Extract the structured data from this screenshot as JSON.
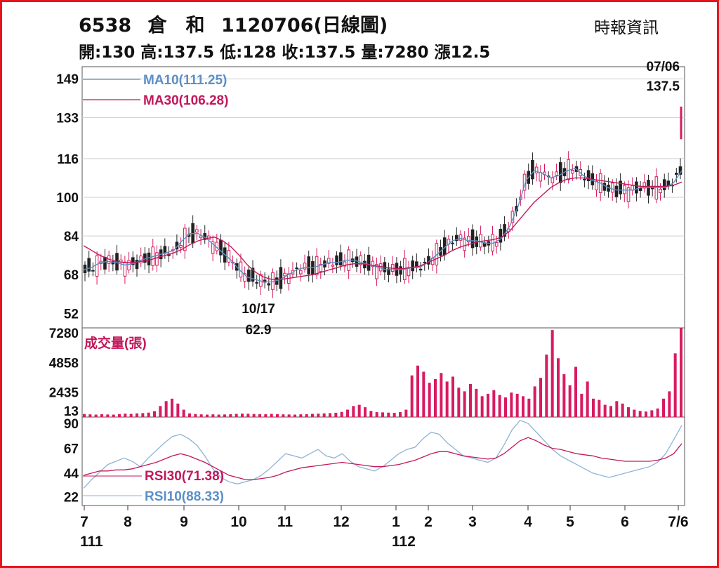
{
  "header": {
    "code": "6538",
    "name": "倉　和",
    "date_title": "1120706(日線圖)",
    "source": "時報資訊",
    "ohlc": [
      {
        "label": "開:",
        "value": "130"
      },
      {
        "label": "高:",
        "value": "137.5"
      },
      {
        "label": "低:",
        "value": "128"
      },
      {
        "label": "收:",
        "value": "137.5"
      },
      {
        "label": "量:",
        "value": "7280"
      },
      {
        "label": "漲",
        "value": "12.5"
      }
    ]
  },
  "colors": {
    "up": "#d81b60",
    "down": "#222222",
    "ma10": "#5b8fc7",
    "ma30": "#c2185b",
    "frame": "#e8141d"
  },
  "chart_data": [
    {
      "type": "line",
      "panel": "price",
      "y_ticks": [
        "149",
        "133",
        "116",
        "100",
        "84",
        "68",
        "52"
      ],
      "y_tick_values": [
        149,
        133,
        116,
        100,
        84,
        68,
        52
      ],
      "ylim": [
        46,
        154
      ],
      "series": [
        {
          "name": "MA10(111.25)",
          "values": [
            70,
            71,
            73,
            73.5,
            73,
            72,
            72.5,
            74,
            75,
            76,
            77,
            78,
            82,
            85,
            85,
            83,
            80,
            77,
            74,
            70,
            67,
            66,
            65,
            65,
            66,
            68,
            70,
            71,
            71,
            72,
            73,
            73,
            74,
            74,
            73,
            72,
            71,
            70,
            70,
            70,
            71,
            71,
            73,
            76,
            79,
            82,
            83,
            82,
            82,
            81,
            81,
            83,
            88,
            96,
            107,
            111,
            110,
            108,
            109,
            111,
            112,
            109,
            107,
            106,
            104,
            103,
            103,
            103,
            104,
            104,
            104,
            104,
            106,
            111
          ]
        },
        {
          "name": "MA30(106.28)",
          "values": [
            80,
            78,
            76,
            74.5,
            73.5,
            73,
            73,
            73.5,
            74,
            75,
            76,
            77,
            78.5,
            80.5,
            82,
            83,
            83.5,
            82,
            79.5,
            76,
            72,
            69,
            67,
            66,
            66,
            66.5,
            67,
            67.5,
            68,
            69,
            70,
            71,
            72,
            72.5,
            72.5,
            72,
            71.5,
            71,
            70.5,
            70.5,
            71,
            71.5,
            73,
            74.5,
            76,
            78,
            79.5,
            80.5,
            81.5,
            82,
            82.5,
            83.5,
            86,
            90,
            94,
            98,
            101,
            104,
            106,
            107.5,
            108,
            108,
            107.5,
            107,
            106.5,
            106,
            105.5,
            105,
            104.5,
            104.5,
            104.5,
            104.5,
            105,
            106.3
          ]
        }
      ],
      "annotations": [
        {
          "text": "07/06",
          "value": "137.5"
        },
        {
          "text": "10/17",
          "value": "62.9"
        }
      ]
    },
    {
      "type": "bar",
      "panel": "volume",
      "title": "成交量(張)",
      "y_ticks": [
        "7280",
        "4858",
        "2435",
        "13"
      ],
      "y_tick_values": [
        7280,
        4858,
        2435,
        13
      ],
      "ylim": [
        0,
        7280
      ],
      "values": [
        250,
        220,
        200,
        230,
        210,
        200,
        240,
        280,
        260,
        300,
        320,
        360,
        480,
        900,
        1300,
        1500,
        1100,
        600,
        300,
        250,
        220,
        200,
        220,
        200,
        210,
        230,
        260,
        280,
        270,
        250,
        240,
        230,
        260,
        230,
        220,
        210,
        200,
        220,
        240,
        260,
        280,
        300,
        320,
        350,
        420,
        600,
        900,
        1000,
        800,
        500,
        400,
        380,
        360,
        340,
        400,
        600,
        3400,
        4200,
        3700,
        2800,
        3100,
        3600,
        2900,
        3300,
        2400,
        2100,
        2700,
        2300,
        1700,
        1900,
        2200,
        1800,
        1600,
        2000,
        1900,
        1700,
        1500,
        2500,
        3200,
        5100,
        7100,
        4800,
        3500,
        2600,
        4100,
        1900,
        2900,
        1500,
        1400,
        1000,
        900,
        1300,
        1100,
        800,
        600,
        500,
        450,
        550,
        700,
        1500,
        2100,
        5200,
        7280
      ]
    },
    {
      "type": "line",
      "panel": "rsi",
      "y_ticks": [
        "90",
        "67",
        "44",
        "22"
      ],
      "y_tick_values": [
        90,
        67,
        44,
        22
      ],
      "ylim": [
        14,
        96
      ],
      "series": [
        {
          "name": "RSI30(71.38)",
          "values": [
            42,
            44,
            46,
            46,
            47,
            47,
            48,
            50,
            52,
            54,
            57,
            60,
            62,
            60,
            57,
            54,
            50,
            46,
            42,
            40,
            38,
            38,
            39,
            40,
            42,
            45,
            47,
            49,
            50,
            51,
            52,
            53,
            54,
            53,
            52,
            51,
            50,
            50,
            51,
            52,
            54,
            56,
            59,
            62,
            64,
            64,
            62,
            60,
            59,
            58,
            57,
            58,
            62,
            68,
            74,
            77,
            74,
            70,
            67,
            66,
            64,
            62,
            61,
            60,
            58,
            57,
            56,
            55,
            55,
            55,
            55,
            56,
            58,
            62,
            71.38
          ]
        },
        {
          "name": "RSI10(88.33)",
          "values": [
            30,
            38,
            45,
            52,
            55,
            58,
            55,
            50,
            58,
            65,
            72,
            78,
            80,
            76,
            70,
            60,
            48,
            40,
            36,
            34,
            36,
            38,
            42,
            48,
            55,
            62,
            60,
            58,
            62,
            66,
            60,
            58,
            62,
            55,
            50,
            48,
            46,
            50,
            56,
            62,
            66,
            68,
            76,
            82,
            80,
            72,
            66,
            60,
            58,
            56,
            54,
            58,
            70,
            84,
            93,
            90,
            82,
            74,
            66,
            60,
            56,
            52,
            48,
            44,
            42,
            40,
            42,
            44,
            46,
            48,
            50,
            54,
            62,
            75,
            88.33
          ]
        }
      ]
    }
  ],
  "x_axis": {
    "months": [
      "7",
      "8",
      "9",
      "10",
      "11",
      "12",
      "1",
      "2",
      "3",
      "4",
      "5",
      "6",
      "7/6"
    ],
    "years": [
      "111",
      "112"
    ]
  }
}
